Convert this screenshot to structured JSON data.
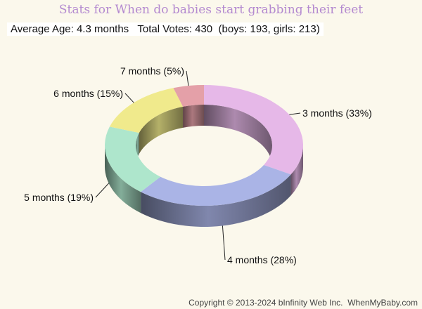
{
  "header": {
    "title": "Stats for When do babies start grabbing their feet",
    "stats": "Average Age: 4.3 months   Total Votes: 430  (boys: 193, girls: 213)"
  },
  "footer": {
    "copyright": "Copyright © 2013-2024 bInfinity Web Inc.  WhenMyBaby.com"
  },
  "colors": {
    "background": "#fbf8ec",
    "title": "#b48ad0"
  },
  "chart_data": {
    "type": "pie",
    "style": "3d-donut",
    "title": "Stats for When do babies start grabbing their feet",
    "series": [
      {
        "label": "3 months (33%)",
        "value": 33,
        "color": "#e6b8e8"
      },
      {
        "label": "4 months (28%)",
        "value": 28,
        "color": "#aab4e6"
      },
      {
        "label": "5 months (19%)",
        "value": 19,
        "color": "#aee6cc"
      },
      {
        "label": "6 months (15%)",
        "value": 15,
        "color": "#f0ea8c"
      },
      {
        "label": "7 months (5%)",
        "value": 5,
        "color": "#e4a0a8"
      }
    ]
  }
}
